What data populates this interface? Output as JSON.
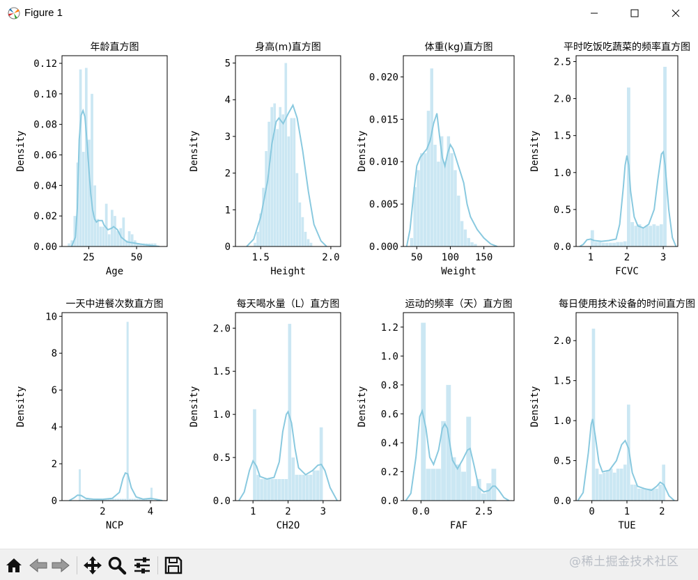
{
  "window": {
    "title": "Figure 1"
  },
  "toolbar": {
    "buttons": [
      {
        "name": "home-icon"
      },
      {
        "name": "back-icon"
      },
      {
        "name": "forward-icon"
      },
      {
        "name": "pan-icon"
      },
      {
        "name": "zoom-icon"
      },
      {
        "name": "configure-subplots-icon"
      },
      {
        "name": "save-icon"
      }
    ]
  },
  "watermark": "@稀土掘金技术社区",
  "colors": {
    "kde": "#89c9df",
    "bars": "#cbe7f3"
  },
  "chart_data": [
    {
      "type": "bar",
      "title": "年龄直方图",
      "xlabel": "Age",
      "ylabel": "Density",
      "xlim": [
        11,
        66
      ],
      "ylim": [
        0,
        0.125
      ],
      "xticks": [
        25,
        50
      ],
      "yticks": [
        0.0,
        0.02,
        0.04,
        0.06,
        0.08,
        0.1,
        0.12
      ],
      "bars": {
        "start": 14,
        "width": 1.5,
        "values": [
          0.002,
          0.004,
          0.02,
          0.055,
          0.116,
          0.062,
          0.117,
          0.07,
          0.1,
          0.04,
          0.018,
          0.013,
          0.013,
          0.028,
          0.008,
          0.024,
          0.02,
          0.01,
          0.012,
          0.019,
          0.004,
          0.01,
          0.008,
          0.004,
          0.002,
          0.002,
          0.002,
          0.002,
          0.002,
          0.002,
          0.002
        ]
      },
      "kde": [
        [
          16,
          0
        ],
        [
          18,
          0.006
        ],
        [
          19,
          0.025
        ],
        [
          20,
          0.07
        ],
        [
          21,
          0.086
        ],
        [
          22,
          0.089
        ],
        [
          23,
          0.085
        ],
        [
          24,
          0.07
        ],
        [
          25,
          0.052
        ],
        [
          26,
          0.035
        ],
        [
          27,
          0.024
        ],
        [
          28,
          0.018
        ],
        [
          29,
          0.016
        ],
        [
          30,
          0.017
        ],
        [
          32,
          0.017
        ],
        [
          33,
          0.014
        ],
        [
          35,
          0.011
        ],
        [
          37,
          0.012
        ],
        [
          38,
          0.013
        ],
        [
          40,
          0.011
        ],
        [
          42,
          0.006
        ],
        [
          45,
          0.003
        ],
        [
          50,
          0.002
        ],
        [
          55,
          0.001
        ],
        [
          62,
          0
        ]
      ]
    },
    {
      "type": "bar",
      "title": "身高(m)直方图",
      "xlabel": "Height",
      "ylabel": "Density",
      "xlim": [
        1.32,
        2.07
      ],
      "ylim": [
        0,
        5.2
      ],
      "xticks": [
        1.5,
        2.0
      ],
      "yticks": [
        0,
        1,
        2,
        3,
        4,
        5
      ],
      "bars": {
        "start": 1.45,
        "width": 0.02,
        "values": [
          0.1,
          0.4,
          0.9,
          1.6,
          2.6,
          3.4,
          3.8,
          3.9,
          3.2,
          3.8,
          3.6,
          5.0,
          3.0,
          3.5,
          3.5,
          2.0,
          1.2,
          0.8,
          0.4,
          0.2,
          0.1
        ]
      },
      "kde": [
        [
          1.4,
          0
        ],
        [
          1.45,
          0.2
        ],
        [
          1.5,
          0.8
        ],
        [
          1.55,
          1.8
        ],
        [
          1.58,
          2.8
        ],
        [
          1.61,
          3.4
        ],
        [
          1.63,
          3.5
        ],
        [
          1.66,
          3.35
        ],
        [
          1.7,
          3.65
        ],
        [
          1.73,
          3.85
        ],
        [
          1.76,
          3.5
        ],
        [
          1.8,
          2.6
        ],
        [
          1.84,
          1.5
        ],
        [
          1.88,
          0.6
        ],
        [
          1.93,
          0.15
        ],
        [
          1.97,
          0
        ]
      ]
    },
    {
      "type": "bar",
      "title": "体重(kg)直方图",
      "xlabel": "Weight",
      "ylabel": "Density",
      "xlim": [
        30,
        195
      ],
      "ylim": [
        0,
        0.0225
      ],
      "xticks": [
        50,
        100,
        150
      ],
      "yticks": [
        0.0,
        0.005,
        0.01,
        0.015,
        0.02
      ],
      "bars": {
        "start": 40,
        "width": 5,
        "values": [
          0.001,
          0.007,
          0.009,
          0.011,
          0.011,
          0.016,
          0.021,
          0.012,
          0.01,
          0.013,
          0.01,
          0.013,
          0.011,
          0.009,
          0.006,
          0.003,
          0.002,
          0.001,
          0.0005,
          0.0003
        ]
      },
      "kde": [
        [
          35,
          0
        ],
        [
          40,
          0.002
        ],
        [
          45,
          0.006
        ],
        [
          50,
          0.0095
        ],
        [
          55,
          0.0105
        ],
        [
          60,
          0.011
        ],
        [
          65,
          0.0115
        ],
        [
          70,
          0.0125
        ],
        [
          75,
          0.0145
        ],
        [
          80,
          0.0157
        ],
        [
          84,
          0.013
        ],
        [
          88,
          0.0105
        ],
        [
          92,
          0.0095
        ],
        [
          96,
          0.011
        ],
        [
          100,
          0.012
        ],
        [
          104,
          0.0115
        ],
        [
          108,
          0.0105
        ],
        [
          112,
          0.0095
        ],
        [
          116,
          0.0085
        ],
        [
          120,
          0.0075
        ],
        [
          125,
          0.005
        ],
        [
          130,
          0.0035
        ],
        [
          140,
          0.002
        ],
        [
          150,
          0.001
        ],
        [
          160,
          0.0003
        ],
        [
          170,
          0
        ]
      ]
    },
    {
      "type": "bar",
      "title": "平时吃饭吃蔬菜的频率直方图",
      "xlabel": "FCVC",
      "ylabel": "Density",
      "xlim": [
        0.6,
        3.4
      ],
      "ylim": [
        0,
        2.58
      ],
      "xticks": [
        1,
        2,
        3
      ],
      "yticks": [
        0.0,
        0.5,
        1.0,
        1.5,
        2.0,
        2.5
      ],
      "bars": {
        "start": 1.0,
        "width": 0.1,
        "values": [
          0.22,
          0.06,
          0.06,
          0.05,
          0.05,
          0.05,
          0.05,
          0.06,
          0.06,
          0.07,
          2.15,
          0.33,
          0.28,
          0.3,
          0.25,
          0.28,
          0.28,
          0.3,
          0.28,
          0.3,
          2.43
        ]
      },
      "kde": [
        [
          0.7,
          0
        ],
        [
          0.8,
          0.03
        ],
        [
          0.9,
          0.09
        ],
        [
          1.0,
          0.1
        ],
        [
          1.1,
          0.08
        ],
        [
          1.3,
          0.07
        ],
        [
          1.5,
          0.08
        ],
        [
          1.7,
          0.1
        ],
        [
          1.8,
          0.3
        ],
        [
          1.9,
          0.8
        ],
        [
          1.95,
          1.1
        ],
        [
          2.0,
          1.23
        ],
        [
          2.05,
          1.1
        ],
        [
          2.1,
          0.75
        ],
        [
          2.2,
          0.4
        ],
        [
          2.3,
          0.28
        ],
        [
          2.45,
          0.25
        ],
        [
          2.6,
          0.3
        ],
        [
          2.75,
          0.5
        ],
        [
          2.85,
          0.9
        ],
        [
          2.95,
          1.25
        ],
        [
          3.0,
          1.28
        ],
        [
          3.05,
          1.1
        ],
        [
          3.15,
          0.5
        ],
        [
          3.25,
          0.12
        ],
        [
          3.35,
          0
        ]
      ]
    },
    {
      "type": "bar",
      "title": "一天中进餐次数直方图",
      "xlabel": "NCP",
      "ylabel": "Density",
      "xlim": [
        0.3,
        4.7
      ],
      "ylim": [
        0,
        10.2
      ],
      "xticks": [
        2,
        4
      ],
      "yticks": [
        0,
        2,
        4,
        6,
        8,
        10
      ],
      "bars": {
        "start": 1.0,
        "width": 0.1,
        "values": [
          1.7,
          0.05,
          0.05,
          0.1,
          0.1,
          0.05,
          0.1,
          0.1,
          0.1,
          0.1,
          0.1,
          0.1,
          0.1,
          0.1,
          0.1,
          0.1,
          0.1,
          0.1,
          0.1,
          0.1,
          9.7,
          0.1,
          0.1,
          0.1,
          0.1,
          0.1,
          0.1,
          0.1,
          0.1,
          0.1,
          0.7
        ]
      },
      "kde": [
        [
          0.6,
          0
        ],
        [
          0.8,
          0.15
        ],
        [
          0.95,
          0.3
        ],
        [
          1.1,
          0.28
        ],
        [
          1.3,
          0.12
        ],
        [
          1.6,
          0.08
        ],
        [
          2.0,
          0.07
        ],
        [
          2.4,
          0.12
        ],
        [
          2.7,
          0.45
        ],
        [
          2.85,
          1.2
        ],
        [
          2.95,
          1.5
        ],
        [
          3.05,
          1.45
        ],
        [
          3.2,
          0.7
        ],
        [
          3.4,
          0.2
        ],
        [
          3.7,
          0.08
        ],
        [
          4.0,
          0.12
        ],
        [
          4.2,
          0.08
        ],
        [
          4.5,
          0
        ]
      ]
    },
    {
      "type": "bar",
      "title": "每天喝水量（L）直方图",
      "xlabel": "CH2O",
      "ylabel": "Density",
      "xlim": [
        0.5,
        3.5
      ],
      "ylim": [
        0,
        2.18
      ],
      "xticks": [
        1,
        2,
        3
      ],
      "yticks": [
        0.0,
        0.5,
        1.0,
        1.5,
        2.0
      ],
      "bars": {
        "start": 1.0,
        "width": 0.1,
        "values": [
          1.06,
          0.3,
          0.25,
          0.25,
          0.25,
          0.25,
          0.25,
          0.25,
          0.25,
          0.25,
          2.05,
          0.5,
          0.3,
          0.3,
          0.3,
          0.3,
          0.3,
          0.35,
          0.35,
          0.85
        ]
      },
      "kde": [
        [
          0.6,
          0
        ],
        [
          0.75,
          0.1
        ],
        [
          0.9,
          0.35
        ],
        [
          1.0,
          0.46
        ],
        [
          1.1,
          0.4
        ],
        [
          1.2,
          0.28
        ],
        [
          1.4,
          0.25
        ],
        [
          1.6,
          0.27
        ],
        [
          1.75,
          0.45
        ],
        [
          1.85,
          0.8
        ],
        [
          1.95,
          1.0
        ],
        [
          2.0,
          1.03
        ],
        [
          2.1,
          0.9
        ],
        [
          2.2,
          0.6
        ],
        [
          2.3,
          0.38
        ],
        [
          2.5,
          0.3
        ],
        [
          2.7,
          0.35
        ],
        [
          2.85,
          0.41
        ],
        [
          2.95,
          0.42
        ],
        [
          3.05,
          0.35
        ],
        [
          3.2,
          0.15
        ],
        [
          3.4,
          0
        ]
      ]
    },
    {
      "type": "bar",
      "title": "运动的频率（天）直方图",
      "xlabel": "FAF",
      "ylabel": "Density",
      "xlim": [
        -0.7,
        3.7
      ],
      "ylim": [
        0,
        1.3
      ],
      "xticks": [
        0.0,
        2.5
      ],
      "yticks": [
        0.0,
        0.2,
        0.4,
        0.6,
        0.8,
        1.0,
        1.2
      ],
      "bars": {
        "start": 0.0,
        "width": 0.2,
        "values": [
          1.23,
          0.22,
          0.22,
          0.22,
          0.55,
          0.8,
          0.3,
          0.25,
          0.2,
          0.58,
          0.1,
          0.15,
          0.05,
          0.12,
          0.22
        ]
      },
      "kde": [
        [
          -0.6,
          0
        ],
        [
          -0.4,
          0.05
        ],
        [
          -0.2,
          0.3
        ],
        [
          -0.05,
          0.58
        ],
        [
          0.05,
          0.62
        ],
        [
          0.2,
          0.5
        ],
        [
          0.35,
          0.3
        ],
        [
          0.5,
          0.25
        ],
        [
          0.7,
          0.35
        ],
        [
          0.85,
          0.5
        ],
        [
          0.95,
          0.53
        ],
        [
          1.05,
          0.5
        ],
        [
          1.25,
          0.28
        ],
        [
          1.45,
          0.22
        ],
        [
          1.65,
          0.28
        ],
        [
          1.85,
          0.35
        ],
        [
          1.95,
          0.36
        ],
        [
          2.1,
          0.25
        ],
        [
          2.3,
          0.09
        ],
        [
          2.5,
          0.06
        ],
        [
          2.7,
          0.07
        ],
        [
          2.85,
          0.1
        ],
        [
          2.95,
          0.1
        ],
        [
          3.1,
          0.07
        ],
        [
          3.3,
          0.02
        ],
        [
          3.5,
          0
        ]
      ]
    },
    {
      "type": "bar",
      "title": "每日使用技术设备的时间直方图",
      "xlabel": "TUE",
      "ylabel": "Density",
      "xlim": [
        -0.45,
        2.45
      ],
      "ylim": [
        0,
        2.35
      ],
      "xticks": [
        0,
        1,
        2
      ],
      "yticks": [
        0.0,
        0.5,
        1.0,
        1.5,
        2.0
      ],
      "bars": {
        "start": 0.0,
        "width": 0.1,
        "values": [
          2.15,
          0.4,
          0.33,
          0.35,
          0.37,
          0.4,
          0.35,
          0.4,
          0.4,
          0.45,
          1.2,
          0.2,
          0.2,
          0.15,
          0.15,
          0.15,
          0.15,
          0.15,
          0.15,
          0.2,
          0.45
        ]
      },
      "kde": [
        [
          -0.4,
          0
        ],
        [
          -0.25,
          0.1
        ],
        [
          -0.1,
          0.6
        ],
        [
          -0.02,
          0.95
        ],
        [
          0.02,
          1.02
        ],
        [
          0.1,
          0.8
        ],
        [
          0.2,
          0.48
        ],
        [
          0.3,
          0.36
        ],
        [
          0.5,
          0.38
        ],
        [
          0.7,
          0.5
        ],
        [
          0.85,
          0.7
        ],
        [
          0.95,
          0.75
        ],
        [
          1.05,
          0.65
        ],
        [
          1.15,
          0.35
        ],
        [
          1.3,
          0.18
        ],
        [
          1.5,
          0.15
        ],
        [
          1.7,
          0.13
        ],
        [
          1.85,
          0.18
        ],
        [
          1.95,
          0.23
        ],
        [
          2.05,
          0.2
        ],
        [
          2.2,
          0.06
        ],
        [
          2.35,
          0
        ]
      ]
    }
  ]
}
